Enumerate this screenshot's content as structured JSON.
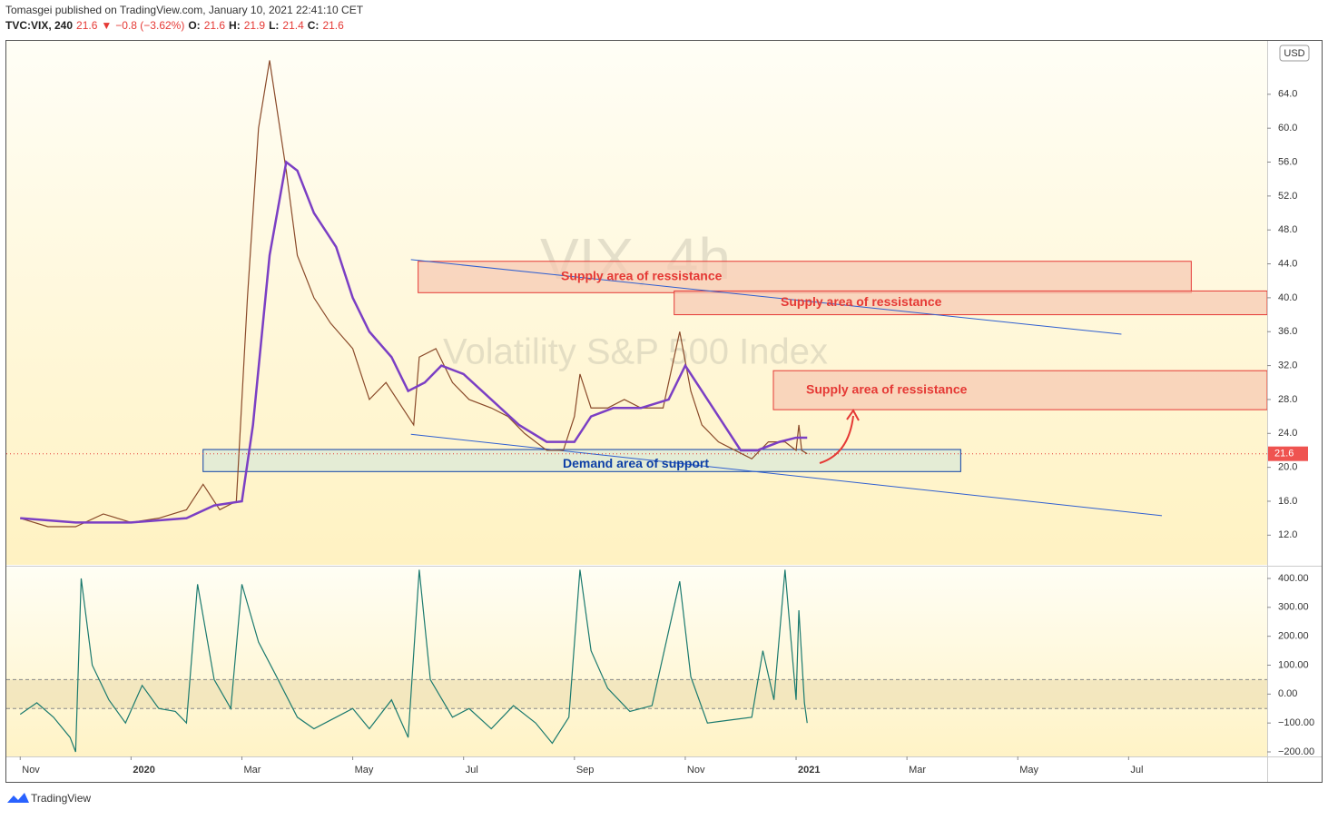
{
  "header": {
    "published": "Tomasgei published on TradingView.com, January 10, 2021 22:41:10 CET",
    "legend": [
      "TVC:VIX, 240",
      "21.6",
      "▼",
      "−0.8 (−3.62%)",
      "O:",
      "21.6",
      "H:",
      "21.9",
      "L:",
      "21.4",
      "C:",
      "21.6"
    ],
    "currency": "USD",
    "watermark": "VIX, 4h",
    "watermark_subtitle": "Volatility S&P 500 Index",
    "footer": "TradingView"
  },
  "chart_data": [
    {
      "type": "line",
      "xlim": [
        -0.25,
        22.5
      ],
      "ylim": [
        8.5,
        70.3
      ],
      "xticks": [
        {
          "value": 0,
          "label": "Nov"
        },
        {
          "value": 2,
          "label": "2020"
        },
        {
          "value": 4,
          "label": "Mar"
        },
        {
          "value": 6,
          "label": "May"
        },
        {
          "value": 8,
          "label": "Jul"
        },
        {
          "value": 10,
          "label": "Sep"
        },
        {
          "value": 12,
          "label": "Nov"
        },
        {
          "value": 14,
          "label": "2021"
        },
        {
          "value": 16,
          "label": "Mar"
        },
        {
          "value": 18,
          "label": "May"
        },
        {
          "value": 20,
          "label": "Jul"
        }
      ],
      "yticks": [
        {
          "value": 12,
          "label": "12.0"
        },
        {
          "value": 16,
          "label": "16.0"
        },
        {
          "value": 20,
          "label": "20.0"
        },
        {
          "value": 24,
          "label": "24.0"
        },
        {
          "value": 28,
          "label": "28.0"
        },
        {
          "value": 32,
          "label": "32.0"
        },
        {
          "value": 36,
          "label": "36.0"
        },
        {
          "value": 40,
          "label": "40.0"
        },
        {
          "value": 44,
          "label": "44.0"
        },
        {
          "value": 48,
          "label": "48.0"
        },
        {
          "value": 52,
          "label": "52.0"
        },
        {
          "value": 56,
          "label": "56.0"
        },
        {
          "value": 60,
          "label": "60.0"
        },
        {
          "value": 64,
          "label": "64.0"
        }
      ],
      "series": [
        {
          "color": "#8a4a2a",
          "x": [
            0,
            0.5,
            1,
            1.5,
            2,
            2.5,
            3,
            3.3,
            3.6,
            3.9,
            4.1,
            4.3,
            4.5,
            4.8,
            5.0,
            5.3,
            5.6,
            6.0,
            6.3,
            6.6,
            6.9,
            7.1,
            7.2,
            7.5,
            7.8,
            8.1,
            8.5,
            8.8,
            9.1,
            9.5,
            9.8,
            10.0,
            10.1,
            10.3,
            10.6,
            10.9,
            11.2,
            11.6,
            11.9,
            12.1,
            12.3,
            12.6,
            12.9,
            13.2,
            13.5,
            13.8,
            14.0,
            14.05,
            14.1,
            14.2
          ],
          "values": [
            14,
            13,
            13,
            14.5,
            13.5,
            14,
            15,
            18,
            15,
            16,
            40,
            60,
            68,
            55,
            45,
            40,
            37,
            34,
            28,
            30,
            27,
            25,
            33,
            34,
            30,
            28,
            27,
            26,
            24,
            22,
            22,
            26,
            31,
            27,
            27,
            28,
            27,
            27,
            36,
            29,
            25,
            23,
            22,
            21,
            23,
            23,
            22,
            25,
            22,
            21.6
          ]
        },
        {
          "color": "#7b3fc4",
          "x": [
            0,
            1,
            2,
            3,
            3.5,
            4,
            4.2,
            4.5,
            4.8,
            5.0,
            5.3,
            5.7,
            6.0,
            6.3,
            6.7,
            7.0,
            7.3,
            7.6,
            8.0,
            8.5,
            9.0,
            9.5,
            10.0,
            10.3,
            10.7,
            11.2,
            11.7,
            12.0,
            12.3,
            12.7,
            13.0,
            13.3,
            13.7,
            14.0,
            14.2
          ],
          "values": [
            14,
            13.5,
            13.5,
            14,
            15.5,
            16,
            25,
            45,
            56,
            55,
            50,
            46,
            40,
            36,
            33,
            29,
            30,
            32,
            31,
            28,
            25,
            23,
            23,
            26,
            27,
            27,
            28,
            32,
            29,
            25,
            22,
            22,
            23,
            23.5,
            23.5
          ]
        }
      ],
      "zones": [
        {
          "label": "Supply area of ressistance",
          "x": [
            7.18,
            21.13
          ],
          "y": [
            40.6,
            44.3
          ],
          "color": "#e53935"
        },
        {
          "label": "Supply area of ressistance",
          "x": [
            11.8,
            22.5
          ],
          "y": [
            38.0,
            40.8
          ],
          "color": "#e53935"
        },
        {
          "label": "Supply area of ressistance",
          "x": [
            13.59,
            22.5
          ],
          "y": [
            26.8,
            31.4
          ],
          "color": "#e53935"
        },
        {
          "label": "Demand area of support",
          "x": [
            3.3,
            16.97
          ],
          "y": [
            19.5,
            22.1
          ],
          "color": "#0d3fa6"
        }
      ],
      "trendlines": [
        {
          "x": [
            7.05,
            19.87
          ],
          "y": [
            44.5,
            35.7
          ]
        },
        {
          "x": [
            7.05,
            20.6
          ],
          "y": [
            23.9,
            14.3
          ]
        }
      ]
    },
    {
      "type": "line",
      "xlim": [
        -0.25,
        22.5
      ],
      "ylim": [
        -215.7,
        437.7
      ],
      "yticks": [
        {
          "value": 400,
          "label": "400.00"
        },
        {
          "value": 300,
          "label": "300.00"
        },
        {
          "value": 200,
          "label": "200.00"
        },
        {
          "value": 100,
          "label": "100.00"
        },
        {
          "value": 0,
          "label": "0.00"
        },
        {
          "value": -100,
          "label": "−100.00"
        },
        {
          "value": -200,
          "label": "−200.00"
        }
      ],
      "bands": [
        -50,
        50
      ],
      "series": [
        {
          "color": "#1b7a6e",
          "x": [
            0,
            0.3,
            0.6,
            0.9,
            1.0,
            1.1,
            1.3,
            1.6,
            1.9,
            2.2,
            2.5,
            2.8,
            3.0,
            3.2,
            3.5,
            3.8,
            4.0,
            4.3,
            4.6,
            5.0,
            5.3,
            5.7,
            6.0,
            6.3,
            6.7,
            7.0,
            7.2,
            7.4,
            7.8,
            8.1,
            8.5,
            8.9,
            9.3,
            9.6,
            9.9,
            10.1,
            10.3,
            10.6,
            11.0,
            11.4,
            11.9,
            12.1,
            12.4,
            12.8,
            13.2,
            13.4,
            13.6,
            13.8,
            14.0,
            14.05,
            14.15,
            14.2
          ],
          "values": [
            -70,
            -30,
            -80,
            -150,
            -200,
            400,
            100,
            -20,
            -100,
            30,
            -50,
            -60,
            -100,
            380,
            50,
            -50,
            380,
            180,
            70,
            -80,
            -120,
            -80,
            -50,
            -120,
            -20,
            -150,
            430,
            50,
            -80,
            -50,
            -120,
            -40,
            -100,
            -170,
            -80,
            430,
            150,
            20,
            -60,
            -40,
            390,
            60,
            -100,
            -90,
            -80,
            150,
            -20,
            430,
            -20,
            290,
            -30,
            -100
          ]
        }
      ]
    }
  ]
}
